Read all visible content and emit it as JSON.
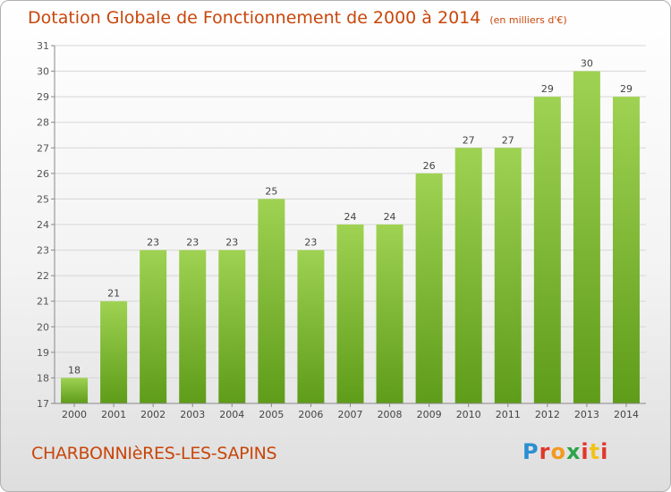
{
  "header": {
    "title": "Dotation Globale de Fonctionnement de 2000 à 2014",
    "unit": "(en milliers d'€)"
  },
  "footer": {
    "commune": "CHARBONNIèRES-LES-SAPINS",
    "logo_text": "Proxiti"
  },
  "colors": {
    "title": "#c8460a",
    "bar_top": "#9fd252",
    "bar_bottom": "#5e9c19"
  },
  "chart_data": {
    "type": "bar",
    "title": "Dotation Globale de Fonctionnement de 2000 à 2014",
    "categories": [
      "2000",
      "2001",
      "2002",
      "2003",
      "2004",
      "2005",
      "2006",
      "2007",
      "2008",
      "2009",
      "2010",
      "2011",
      "2012",
      "2013",
      "2014"
    ],
    "values": [
      18,
      21,
      23,
      23,
      23,
      25,
      23,
      24,
      24,
      26,
      27,
      27,
      29,
      30,
      29
    ],
    "value_labels": [
      "18",
      "21",
      "23",
      "23",
      "23",
      "25",
      "23",
      "24",
      "24",
      "26",
      "27",
      "27",
      "29",
      "30",
      "29"
    ],
    "yticks": [
      "17",
      "18",
      "19",
      "20",
      "21",
      "22",
      "23",
      "24",
      "25",
      "26",
      "27",
      "28",
      "29",
      "30",
      "31"
    ],
    "xlabel": "",
    "ylabel": "",
    "ylim": [
      17,
      31
    ],
    "grid": true
  }
}
